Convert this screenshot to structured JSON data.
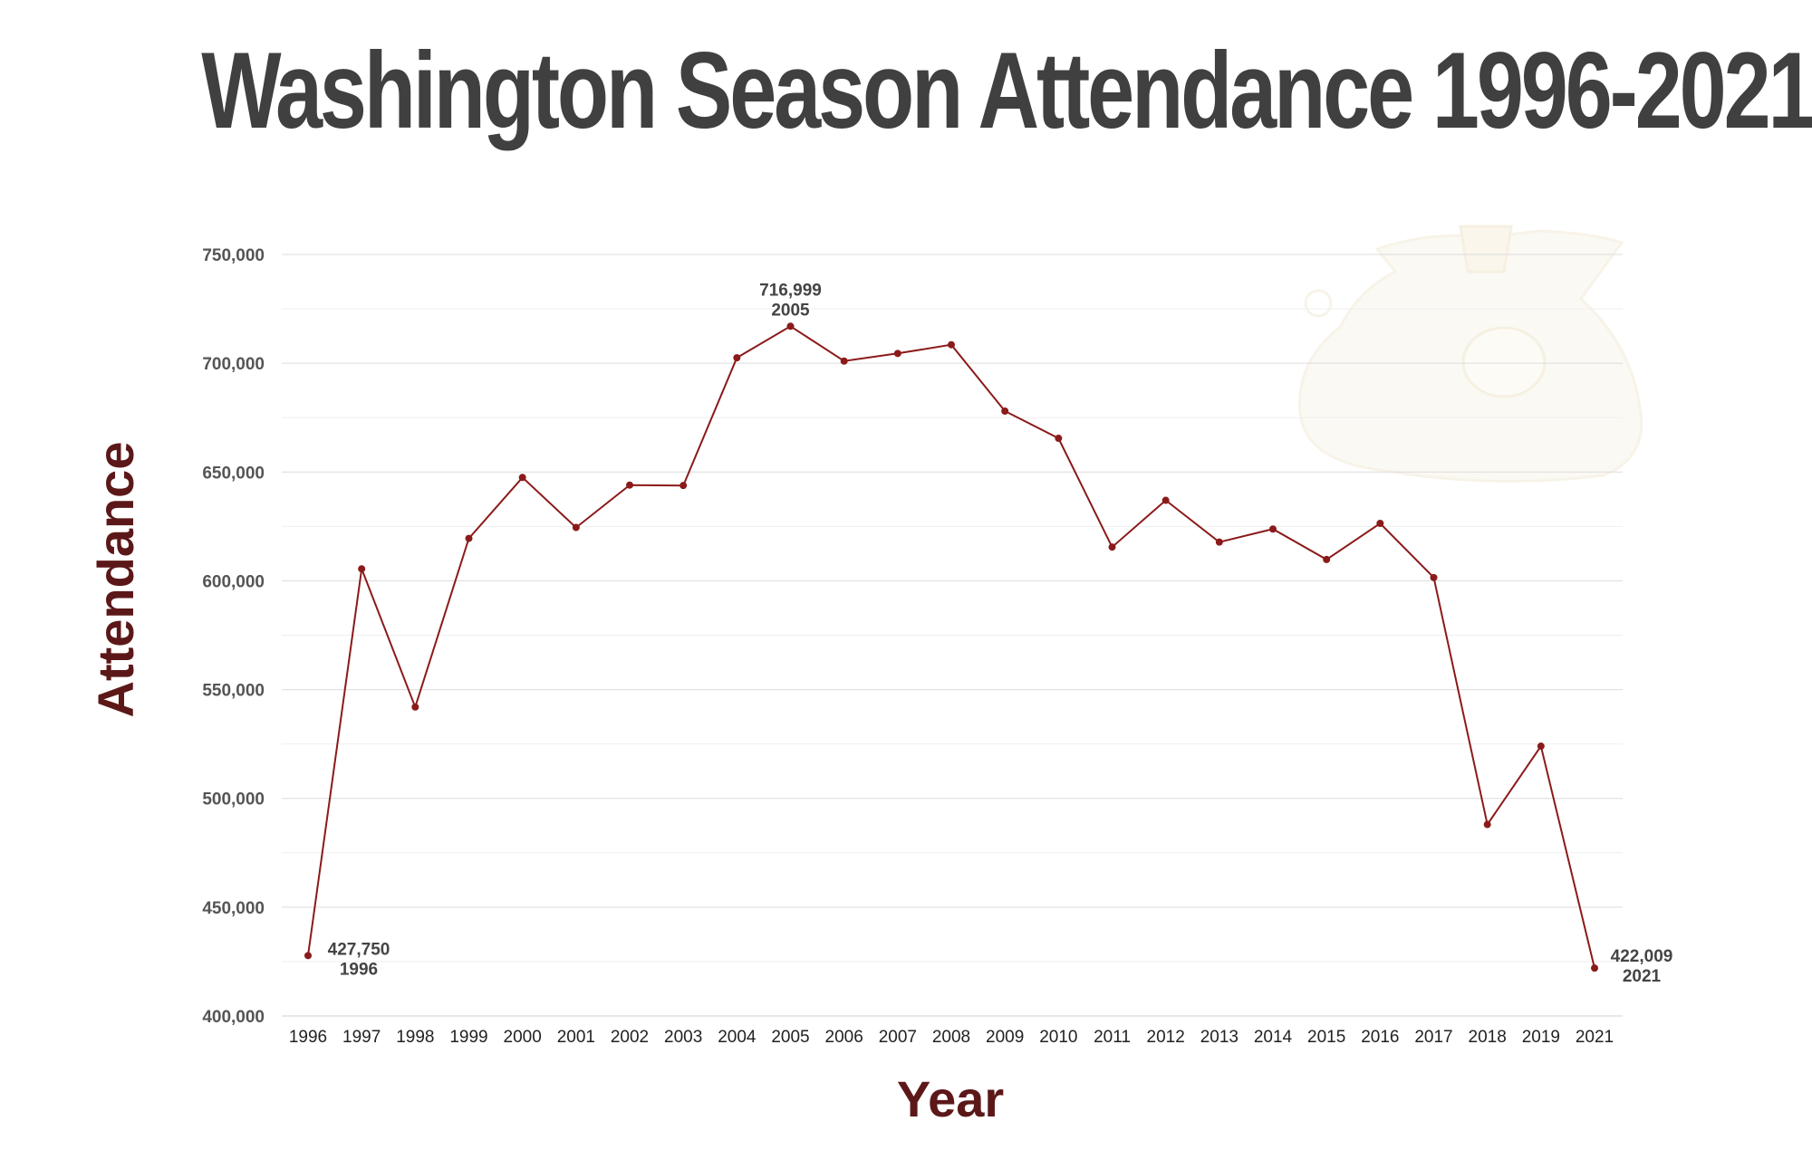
{
  "chart_data": {
    "type": "line",
    "title": "Washington Season Attendance 1996-2021",
    "xlabel": "Year",
    "ylabel": "Attendance",
    "categories": [
      "1996",
      "1997",
      "1998",
      "1999",
      "2000",
      "2001",
      "2002",
      "2003",
      "2004",
      "2005",
      "2006",
      "2007",
      "2008",
      "2009",
      "2010",
      "2011",
      "2012",
      "2013",
      "2014",
      "2015",
      "2016",
      "2017",
      "2018",
      "2019",
      "2021"
    ],
    "series": [
      {
        "values": [
          427750,
          605500,
          542000,
          619500,
          647500,
          624500,
          644000,
          643800,
          702500,
          716999,
          701000,
          704500,
          708500,
          678000,
          665500,
          615500,
          637000,
          617800,
          623800,
          609800,
          626400,
          601500,
          488000,
          524000,
          422009
        ],
        "color": "#8b1a1a"
      }
    ],
    "ylim": [
      400000,
      750000
    ],
    "yticks": [
      400000,
      450000,
      500000,
      550000,
      600000,
      650000,
      700000,
      750000
    ],
    "ytick_labels": [
      "400,000",
      "450,000",
      "500,000",
      "550,000",
      "600,000",
      "650,000",
      "700,000",
      "750,000"
    ],
    "grid": true,
    "annotations": [
      {
        "index": 0,
        "value_label": "427,750",
        "year_label": "1996"
      },
      {
        "index": 9,
        "value_label": "716,999",
        "year_label": "2005"
      },
      {
        "index": 24,
        "value_label": "422,009",
        "year_label": "2021"
      }
    ],
    "colors": {
      "line": "#8b1a1a",
      "axis_title": "#5c1818",
      "title": "#404040",
      "grid": "#e2e2e2"
    }
  }
}
